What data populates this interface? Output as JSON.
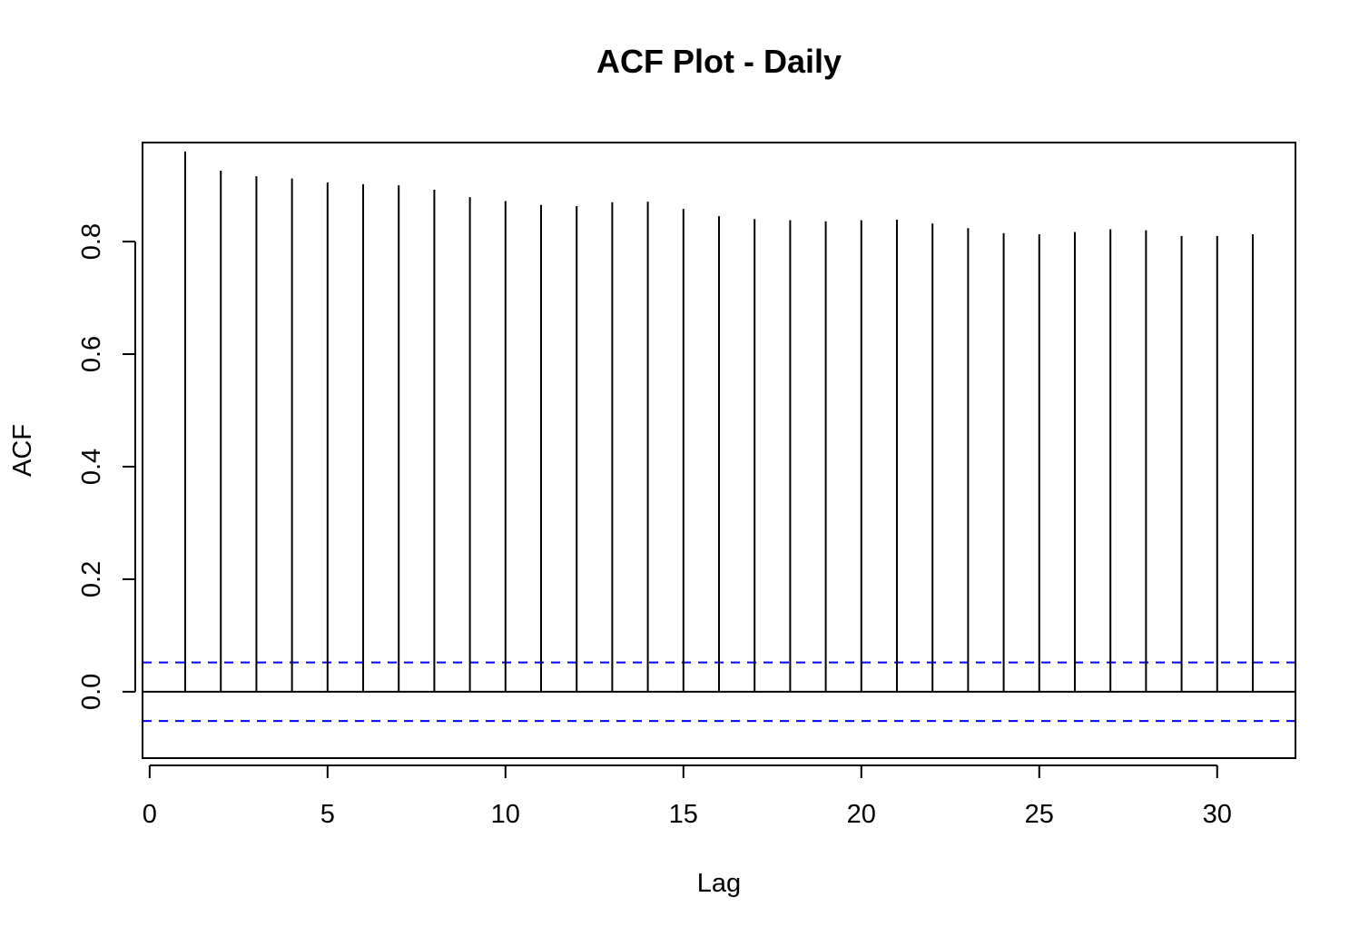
{
  "chart_data": {
    "type": "bar",
    "title": "ACF Plot - Daily",
    "xlabel": "Lag",
    "ylabel": "ACF",
    "xlim": [
      -0.2,
      32.2
    ],
    "ylim": [
      -0.118,
      0.976
    ],
    "x_ticks": [
      0,
      5,
      10,
      15,
      20,
      25,
      30
    ],
    "y_ticks": [
      0.0,
      0.2,
      0.4,
      0.6,
      0.8
    ],
    "x_tick_labels": [
      "0",
      "5",
      "10",
      "15",
      "20",
      "25",
      "30"
    ],
    "y_tick_labels": [
      "0.0",
      "0.2",
      "0.4",
      "0.6",
      "0.8"
    ],
    "lags": [
      1,
      2,
      3,
      4,
      5,
      6,
      7,
      8,
      9,
      10,
      11,
      12,
      13,
      14,
      15,
      16,
      17,
      18,
      19,
      20,
      21,
      22,
      23,
      24,
      25,
      26,
      27,
      28,
      29,
      30,
      31
    ],
    "values": [
      0.96,
      0.926,
      0.916,
      0.912,
      0.905,
      0.902,
      0.9,
      0.892,
      0.879,
      0.872,
      0.865,
      0.863,
      0.87,
      0.871,
      0.858,
      0.845,
      0.84,
      0.838,
      0.836,
      0.838,
      0.839,
      0.832,
      0.824,
      0.815,
      0.813,
      0.817,
      0.822,
      0.82,
      0.81,
      0.81,
      0.813
    ],
    "confidence_bound": 0.052,
    "grid": false,
    "colors": {
      "lines": "#000000",
      "ci": "#0000ff"
    }
  }
}
